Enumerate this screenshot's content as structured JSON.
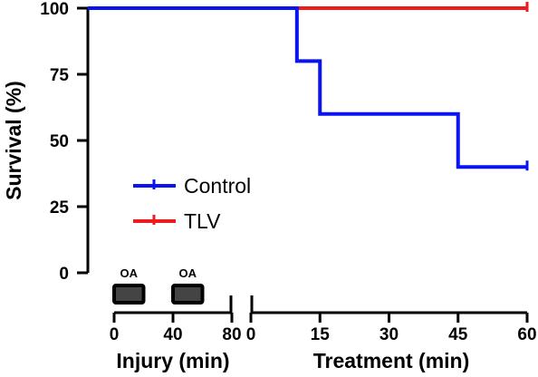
{
  "chart_data": {
    "type": "line",
    "step": true,
    "ylabel": "Survival (%)",
    "yticks": [
      "0",
      "25",
      "50",
      "75",
      "100"
    ],
    "ylim": [
      0,
      100
    ],
    "grid": false,
    "legend_position": "center-left",
    "injury_axis": {
      "xlabel": "Injury (min)",
      "xticks": [
        "0",
        "40",
        "80"
      ],
      "xlim": [
        0,
        80
      ],
      "events": [
        {
          "label": "OA",
          "start": 0,
          "end": 20
        },
        {
          "label": "OA",
          "start": 40,
          "end": 60
        }
      ]
    },
    "treatment_axis": {
      "xlabel": "Treatment (min)",
      "xticks": [
        "0",
        "15",
        "30",
        "45",
        "60"
      ],
      "xlim": [
        0,
        60
      ]
    },
    "series": [
      {
        "name": "Control",
        "color": "#0a14f0",
        "steps": [
          [
            0,
            100
          ],
          [
            10,
            80
          ],
          [
            15,
            60
          ],
          [
            45,
            40
          ],
          [
            60,
            40
          ]
        ]
      },
      {
        "name": "TLV",
        "color": "#ee1c1c",
        "steps": [
          [
            0,
            100
          ],
          [
            60,
            100
          ]
        ]
      }
    ]
  }
}
